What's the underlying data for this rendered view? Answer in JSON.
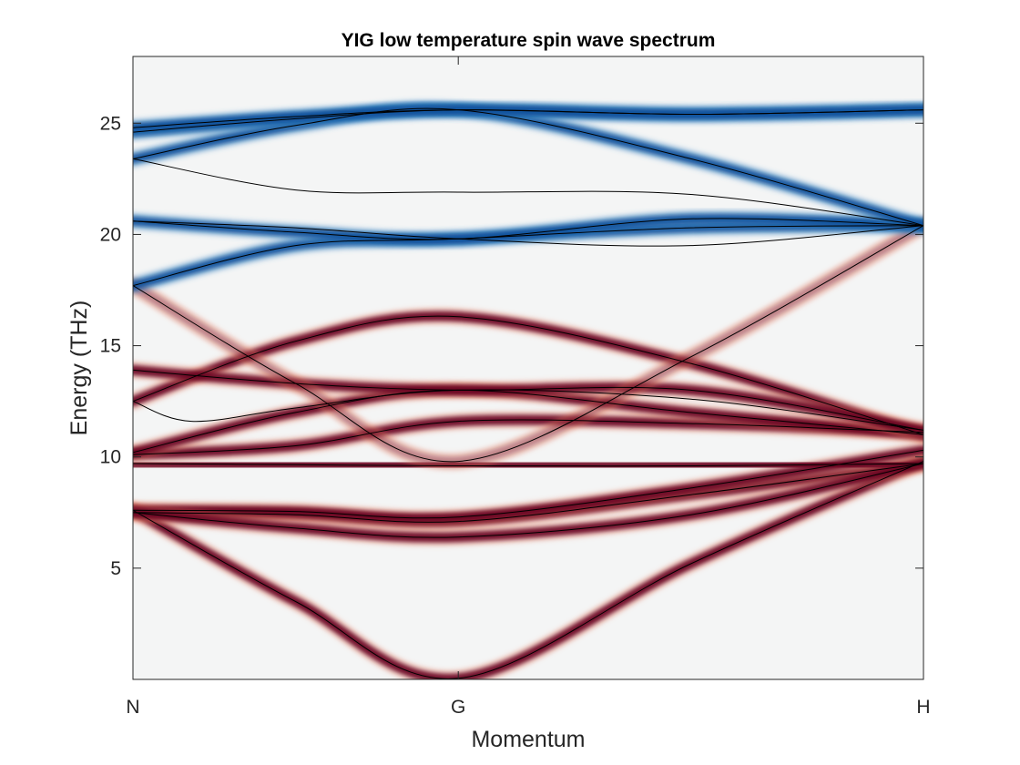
{
  "chart_data": {
    "type": "line",
    "title": "YIG low temperature spin wave spectrum",
    "xlabel": "Momentum",
    "ylabel": "Energy (THz)",
    "x_ticks": [
      "N",
      "G",
      "H"
    ],
    "x_tick_positions": [
      0,
      1,
      2.43
    ],
    "ylim": [
      0,
      28
    ],
    "y_ticks": [
      5,
      10,
      15,
      20,
      25
    ],
    "grid": false,
    "legend": "none",
    "colors": {
      "positive_intensity": "#67001f",
      "negative_intensity": "#08519c",
      "background": "#f4f5f5",
      "dispersion_line": "#000000"
    },
    "series": [
      {
        "band": "acoustic",
        "sign": "positive",
        "x": [
          0,
          0.5,
          1,
          1.715,
          2.43
        ],
        "y": [
          7.6,
          3.5,
          0.05,
          5.2,
          9.8
        ]
      },
      {
        "band": "opt-7a",
        "sign": "positive",
        "x": [
          0,
          0.5,
          1,
          1.715,
          2.43
        ],
        "y": [
          7.5,
          7.4,
          7.1,
          8.3,
          9.7
        ]
      },
      {
        "band": "opt-7b",
        "sign": "positive",
        "x": [
          0,
          0.5,
          1,
          1.715,
          2.43
        ],
        "y": [
          7.6,
          7.55,
          7.3,
          8.6,
          10.3
        ]
      },
      {
        "band": "opt-6.5",
        "sign": "positive",
        "x": [
          0,
          0.5,
          1,
          1.715,
          2.43
        ],
        "y": [
          7.5,
          6.8,
          6.4,
          7.4,
          9.7
        ]
      },
      {
        "band": "flat-9.7",
        "sign": "positive",
        "x": [
          0,
          0.5,
          1,
          1.715,
          2.43
        ],
        "y": [
          9.7,
          9.65,
          9.6,
          9.6,
          9.7
        ]
      },
      {
        "band": "mid-10a",
        "sign": "positive",
        "x": [
          0,
          0.5,
          1,
          1.715,
          2.43
        ],
        "y": [
          10.1,
          10.5,
          11.6,
          11.5,
          11.1
        ]
      },
      {
        "band": "mid-10b",
        "sign": "positive",
        "x": [
          0,
          0.5,
          1,
          1.715,
          2.43
        ],
        "y": [
          10.2,
          12.0,
          13.0,
          12.0,
          11.0
        ]
      },
      {
        "band": "mid-12.5",
        "sign": "positive",
        "x": [
          0,
          0.5,
          1,
          1.715,
          2.43
        ],
        "y": [
          12.5,
          15.2,
          16.3,
          14.2,
          11.0
        ]
      },
      {
        "band": "mid-12.5b",
        "sign": "none",
        "x": [
          0,
          0.18,
          0.5,
          1,
          1.715,
          2.43
        ],
        "y": [
          12.5,
          11.6,
          12.2,
          13.0,
          12.6,
          11.2
        ]
      },
      {
        "band": "mid-14",
        "sign": "positive",
        "x": [
          0,
          0.5,
          1,
          1.715,
          2.43
        ],
        "y": [
          13.9,
          13.3,
          13.0,
          13.0,
          11.2
        ]
      },
      {
        "band": "mixed",
        "sign": "both",
        "x": [
          0,
          0.5,
          1,
          1.715,
          2.43
        ],
        "y": [
          17.7,
          13.3,
          9.8,
          14.5,
          20.4
        ]
      },
      {
        "band": "blue-17.7",
        "sign": "negative",
        "x": [
          0,
          0.5,
          1,
          1.715,
          2.43
        ],
        "y": [
          17.7,
          19.5,
          19.8,
          20.3,
          20.4
        ]
      },
      {
        "band": "blue-20.5a",
        "sign": "negative",
        "x": [
          0,
          0.5,
          1,
          1.715,
          2.43
        ],
        "y": [
          20.6,
          20.1,
          19.8,
          20.7,
          20.4
        ]
      },
      {
        "band": "blue-20.5b",
        "sign": "none",
        "x": [
          0,
          0.5,
          1,
          1.715,
          2.43
        ],
        "y": [
          20.6,
          20.3,
          19.8,
          19.5,
          20.4
        ]
      },
      {
        "band": "blue-23.4",
        "sign": "none",
        "x": [
          0,
          0.5,
          1,
          1.715,
          2.43
        ],
        "y": [
          23.4,
          22.0,
          21.9,
          21.8,
          20.4
        ]
      },
      {
        "band": "blue-23.4b",
        "sign": "negative",
        "x": [
          0,
          0.5,
          1,
          1.715,
          2.43
        ],
        "y": [
          23.4,
          24.9,
          25.6,
          23.4,
          20.4
        ]
      },
      {
        "band": "blue-24.6",
        "sign": "negative",
        "x": [
          0,
          0.5,
          1,
          1.715,
          2.43
        ],
        "y": [
          24.6,
          25.2,
          25.6,
          25.4,
          25.6
        ]
      },
      {
        "band": "blue-24.8",
        "sign": "negative",
        "x": [
          0,
          0.5,
          1,
          1.715,
          2.43
        ],
        "y": [
          24.8,
          25.3,
          25.6,
          25.4,
          25.6
        ]
      }
    ]
  }
}
